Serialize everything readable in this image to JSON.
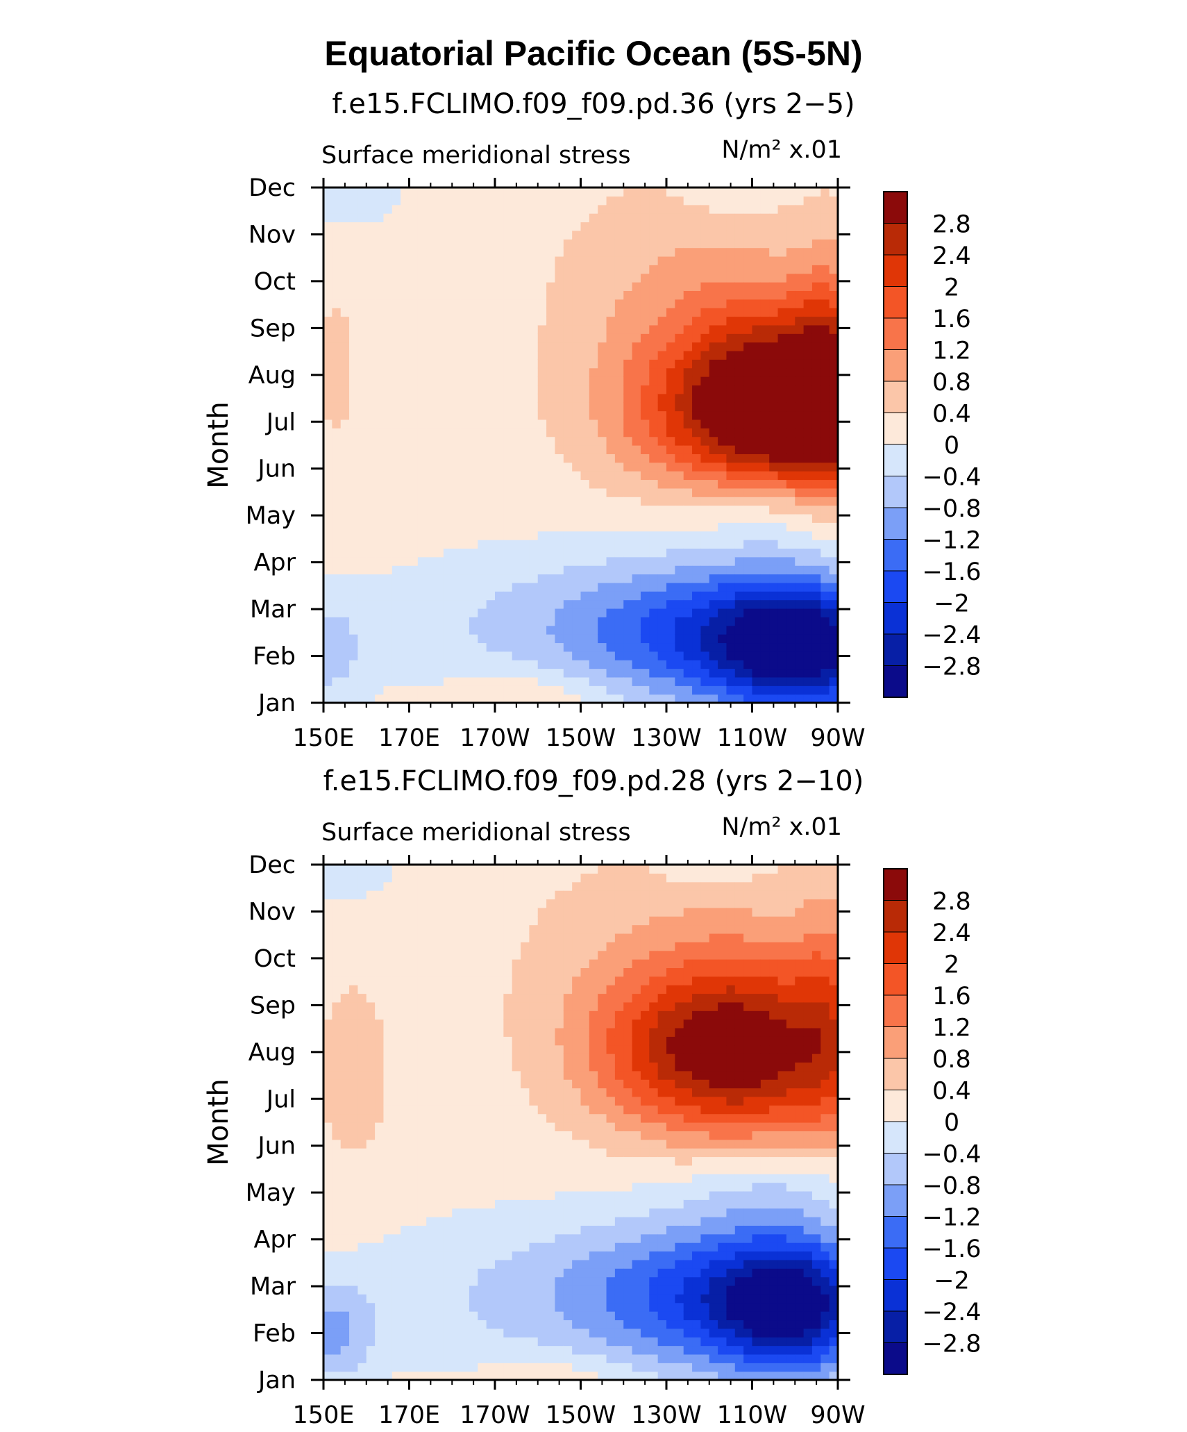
{
  "title": "Equatorial Pacific Ocean (5S-5N)",
  "colors": {
    "-3.2": "#0b0b8a",
    "-2.8": "#071fa6",
    "-2.4": "#0a31d6",
    "-2": "#1b49f2",
    "-1.6": "#3b6cf5",
    "-1.2": "#7b9ff7",
    "-0.8": "#b2c8fa",
    "-0.4": "#d6e6fb",
    "0": "#fde9da",
    "0.4": "#fbc6a9",
    "0.8": "#fa9f78",
    "1.2": "#f8744a",
    "1.6": "#f35526",
    "2": "#e03606",
    "2.4": "#b92a06",
    "2.8": "#8b0a0a"
  },
  "chart_data": [
    {
      "type": "heatmap",
      "subtitle": "f.e15.FCLIMO.f09_f09.pd.36 (yrs 2−5)",
      "left_label": "Surface meridional stress",
      "right_label": "N/m² x.01",
      "ylabel": "Month",
      "x_tick_labels": [
        "150E",
        "170E",
        "170W",
        "150W",
        "130W",
        "110W",
        "90W"
      ],
      "x_ticks_deg": [
        150,
        170,
        190,
        210,
        230,
        250,
        270
      ],
      "x_range_deg": [
        150,
        270
      ],
      "y_tick_labels": [
        "Jan",
        "Feb",
        "Mar",
        "Apr",
        "May",
        "Jun",
        "Jul",
        "Aug",
        "Sep",
        "Oct",
        "Nov",
        "Dec"
      ],
      "y_range": [
        1,
        12
      ],
      "colorbar_levels": [
        -2.8,
        -2.4,
        -2,
        -1.6,
        -1.2,
        -0.8,
        -0.4,
        0,
        0.4,
        0.8,
        1.2,
        1.6,
        2,
        2.4,
        2.8
      ],
      "colorbar_labels": [
        "2.8",
        "2.4",
        "2",
        "1.6",
        "1.2",
        "0.8",
        "0.4",
        "0",
        "−0.4",
        "−0.8",
        "−1.2",
        "−1.6",
        "−2",
        "−2.4",
        "−2.8"
      ],
      "base_value": 0.2,
      "features": [
        {
          "lon": 265,
          "month": 7.2,
          "value": 2.7,
          "r_lon": 24,
          "r_month": 1.9
        },
        {
          "lon": 242,
          "month": 7.1,
          "value": 1.4,
          "r_lon": 26,
          "r_month": 1.6
        },
        {
          "lon": 252,
          "month": 8.4,
          "value": 0.8,
          "r_lon": 20,
          "r_month": 2.0
        },
        {
          "lon": 232,
          "month": 9.4,
          "value": 0.6,
          "r_lon": 28,
          "r_month": 2.6
        },
        {
          "lon": 268,
          "month": 8.2,
          "value": 1.0,
          "r_lon": 8,
          "r_month": 2.6
        },
        {
          "lon": 153,
          "month": 8.2,
          "value": 0.3,
          "r_lon": 6,
          "r_month": 2.0
        },
        {
          "lon": 262,
          "month": 2.2,
          "value": -3.1,
          "r_lon": 20,
          "r_month": 1.5
        },
        {
          "lon": 238,
          "month": 2.5,
          "value": -1.5,
          "r_lon": 28,
          "r_month": 1.5
        },
        {
          "lon": 205,
          "month": 2.6,
          "value": -0.7,
          "r_lon": 44,
          "r_month": 1.7
        },
        {
          "lon": 150,
          "month": 2.1,
          "value": -0.7,
          "r_lon": 10,
          "r_month": 1.2
        },
        {
          "lon": 258,
          "month": 5.2,
          "value": -0.7,
          "r_lon": 22,
          "r_month": 1.0
        },
        {
          "lon": 198,
          "month": 1.1,
          "value": 0.5,
          "r_lon": 18,
          "r_month": 0.7
        },
        {
          "lon": 155,
          "month": 12,
          "value": -0.5,
          "r_lon": 14,
          "r_month": 0.9
        },
        {
          "lon": 245,
          "month": 12,
          "value": -0.4,
          "r_lon": 10,
          "r_month": 0.5
        }
      ]
    },
    {
      "type": "heatmap",
      "subtitle": "f.e15.FCLIMO.f09_f09.pd.28 (yrs 2−10)",
      "left_label": "Surface meridional stress",
      "right_label": "N/m² x.01",
      "ylabel": "Month",
      "x_tick_labels": [
        "150E",
        "170E",
        "170W",
        "150W",
        "130W",
        "110W",
        "90W"
      ],
      "x_ticks_deg": [
        150,
        170,
        190,
        210,
        230,
        250,
        270
      ],
      "x_range_deg": [
        150,
        270
      ],
      "y_tick_labels": [
        "Jan",
        "Feb",
        "Mar",
        "Apr",
        "May",
        "Jun",
        "Jul",
        "Aug",
        "Sep",
        "Oct",
        "Nov",
        "Dec"
      ],
      "y_range": [
        1,
        12
      ],
      "colorbar_levels": [
        -2.8,
        -2.4,
        -2,
        -1.6,
        -1.2,
        -0.8,
        -0.4,
        0,
        0.4,
        0.8,
        1.2,
        1.6,
        2,
        2.4,
        2.8
      ],
      "colorbar_labels": [
        "2.8",
        "2.4",
        "2",
        "1.6",
        "1.2",
        "0.8",
        "0.4",
        "0",
        "−0.4",
        "−0.8",
        "−1.2",
        "−1.6",
        "−2",
        "−2.4",
        "−2.8"
      ],
      "base_value": 0.2,
      "features": [
        {
          "lon": 252,
          "month": 7.9,
          "value": 2.1,
          "r_lon": 26,
          "r_month": 1.9
        },
        {
          "lon": 230,
          "month": 8.0,
          "value": 1.0,
          "r_lon": 22,
          "r_month": 1.6
        },
        {
          "lon": 250,
          "month": 9.2,
          "value": 0.5,
          "r_lon": 22,
          "r_month": 2.2
        },
        {
          "lon": 225,
          "month": 9.5,
          "value": 0.5,
          "r_lon": 30,
          "r_month": 2.6
        },
        {
          "lon": 268,
          "month": 9.0,
          "value": 0.8,
          "r_lon": 8,
          "r_month": 2.8
        },
        {
          "lon": 157,
          "month": 7.6,
          "value": 0.4,
          "r_lon": 9,
          "r_month": 2.1
        },
        {
          "lon": 260,
          "month": 2.6,
          "value": -2.8,
          "r_lon": 19,
          "r_month": 1.5
        },
        {
          "lon": 238,
          "month": 2.8,
          "value": -1.4,
          "r_lon": 28,
          "r_month": 1.6
        },
        {
          "lon": 205,
          "month": 2.8,
          "value": -0.7,
          "r_lon": 46,
          "r_month": 1.8
        },
        {
          "lon": 152,
          "month": 2.0,
          "value": -1.0,
          "r_lon": 10,
          "r_month": 1.1
        },
        {
          "lon": 255,
          "month": 5.2,
          "value": -0.6,
          "r_lon": 24,
          "r_month": 1.0
        },
        {
          "lon": 205,
          "month": 1.0,
          "value": 0.4,
          "r_lon": 18,
          "r_month": 0.6
        },
        {
          "lon": 155,
          "month": 12,
          "value": -0.5,
          "r_lon": 12,
          "r_month": 0.8
        },
        {
          "lon": 240,
          "month": 12,
          "value": -0.4,
          "r_lon": 10,
          "r_month": 0.5
        }
      ]
    }
  ]
}
